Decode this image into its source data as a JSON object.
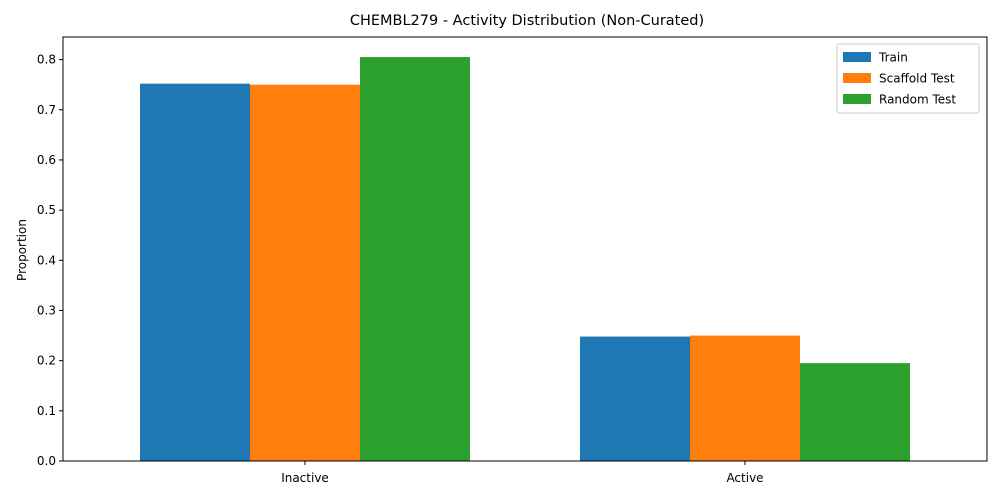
{
  "chart_data": {
    "type": "bar",
    "title": "CHEMBL279 - Activity Distribution (Non-Curated)",
    "xlabel": "",
    "ylabel": "Proportion",
    "categories": [
      "Inactive",
      "Active"
    ],
    "series": [
      {
        "name": "Train",
        "values": [
          0.752,
          0.248
        ],
        "color": "#1f77b4"
      },
      {
        "name": "Scaffold Test",
        "values": [
          0.75,
          0.25
        ],
        "color": "#ff7f0e"
      },
      {
        "name": "Random Test",
        "values": [
          0.805,
          0.195
        ],
        "color": "#2ca02c"
      }
    ],
    "ylim": [
      0,
      0.845
    ],
    "yticks": [
      0.0,
      0.1,
      0.2,
      0.3,
      0.4,
      0.5,
      0.6,
      0.7,
      0.8
    ],
    "ytick_labels": [
      "0.0",
      "0.1",
      "0.2",
      "0.3",
      "0.4",
      "0.5",
      "0.6",
      "0.7",
      "0.8"
    ],
    "grid": false,
    "legend_position": "top-right"
  }
}
